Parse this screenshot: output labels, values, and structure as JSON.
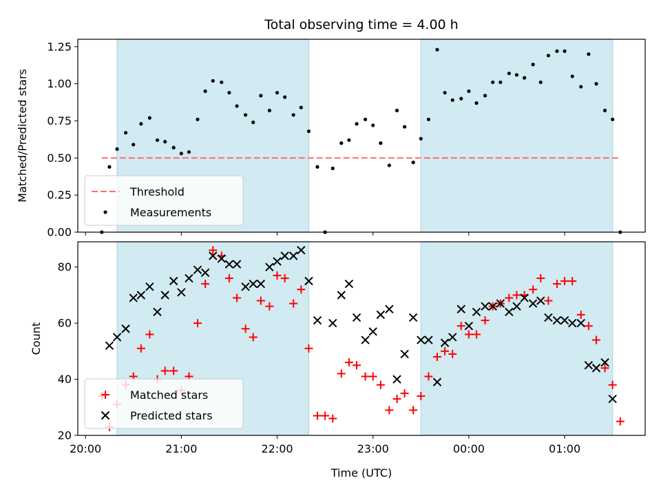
{
  "chart_data": {
    "title": "Total observing time = 4.00 h",
    "xlabel": "Time (UTC)",
    "x_ticks": [
      "20:00",
      "21:00",
      "22:00",
      "23:00",
      "00:00",
      "01:00"
    ],
    "x_unit": "hours since 20:00 UTC",
    "xlim": [
      -0.08,
      5.84
    ],
    "shaded_spans": [
      [
        0.33,
        2.33
      ],
      [
        3.5,
        5.5
      ]
    ],
    "span_color": "#add8e6",
    "panels": [
      {
        "type": "scatter",
        "ylabel": "Matched/Predicted stars",
        "ylim": [
          0.0,
          1.3
        ],
        "y_ticks": [
          "0.00",
          "0.25",
          "0.50",
          "0.75",
          "1.00",
          "1.25"
        ],
        "legend_position": "lower-left",
        "threshold": {
          "name": "Threshold",
          "value": 0.5,
          "x_range": [
            0.17,
            5.58
          ],
          "color": "#ff6a6a"
        },
        "series": [
          {
            "name": "Measurements",
            "color": "#000000",
            "marker": "dot",
            "x": [
              0.17,
              0.25,
              0.33,
              0.42,
              0.5,
              0.58,
              0.67,
              0.75,
              0.83,
              0.92,
              1.0,
              1.08,
              1.17,
              1.25,
              1.33,
              1.42,
              1.5,
              1.58,
              1.67,
              1.75,
              1.83,
              1.92,
              2.0,
              2.08,
              2.17,
              2.25,
              2.33,
              2.42,
              2.5,
              2.58,
              2.67,
              2.75,
              2.83,
              2.92,
              3.0,
              3.08,
              3.17,
              3.25,
              3.33,
              3.42,
              3.5,
              3.58,
              3.67,
              3.75,
              3.83,
              3.92,
              4.0,
              4.08,
              4.17,
              4.25,
              4.33,
              4.42,
              4.5,
              4.58,
              4.67,
              4.75,
              4.83,
              4.92,
              5.0,
              5.08,
              5.17,
              5.25,
              5.33,
              5.42,
              5.5,
              5.58
            ],
            "y": [
              0.0,
              0.44,
              0.56,
              0.67,
              0.59,
              0.73,
              0.77,
              0.62,
              0.61,
              0.57,
              0.53,
              0.54,
              0.76,
              0.95,
              1.02,
              1.01,
              0.94,
              0.85,
              0.79,
              0.74,
              0.92,
              0.82,
              0.94,
              0.91,
              0.79,
              0.84,
              0.68,
              0.44,
              0.0,
              0.43,
              0.6,
              0.62,
              0.73,
              0.76,
              0.72,
              0.6,
              0.45,
              0.82,
              0.71,
              0.47,
              0.63,
              0.76,
              1.23,
              0.94,
              0.89,
              0.9,
              0.95,
              0.87,
              0.92,
              1.01,
              1.01,
              1.07,
              1.06,
              1.04,
              1.13,
              1.01,
              1.19,
              1.22,
              1.22,
              1.05,
              0.98,
              1.2,
              1.0,
              0.82,
              0.76,
              0.0
            ]
          }
        ]
      },
      {
        "type": "scatter",
        "ylabel": "Count",
        "ylim": [
          20,
          89
        ],
        "y_ticks": [
          "20",
          "40",
          "60",
          "80"
        ],
        "legend_position": "lower-left",
        "series": [
          {
            "name": "Matched stars",
            "color": "#ff0000",
            "marker": "plus",
            "x": [
              0.17,
              0.25,
              0.33,
              0.42,
              0.5,
              0.58,
              0.67,
              0.75,
              0.83,
              0.92,
              1.0,
              1.08,
              1.17,
              1.25,
              1.33,
              1.42,
              1.5,
              1.58,
              1.67,
              1.75,
              1.83,
              1.92,
              2.0,
              2.08,
              2.17,
              2.25,
              2.33,
              2.42,
              2.5,
              2.58,
              2.67,
              2.75,
              2.83,
              2.92,
              3.0,
              3.08,
              3.17,
              3.25,
              3.33,
              3.42,
              3.5,
              3.58,
              3.67,
              3.75,
              3.83,
              3.92,
              4.0,
              4.08,
              4.17,
              4.25,
              4.33,
              4.42,
              4.5,
              4.58,
              4.67,
              4.75,
              4.83,
              4.92,
              5.0,
              5.08,
              5.17,
              5.25,
              5.33,
              5.42,
              5.5,
              5.58
            ],
            "y": [
              34,
              23,
              31,
              38,
              41,
              51,
              56,
              40,
              43,
              43,
              36,
              41,
              60,
              74,
              86,
              84,
              76,
              69,
              58,
              55,
              68,
              66,
              77,
              76,
              67,
              72,
              51,
              27,
              27,
              26,
              42,
              46,
              45,
              41,
              41,
              38,
              29,
              33,
              35,
              29,
              34,
              41,
              48,
              50,
              49,
              59,
              56,
              56,
              61,
              66,
              67,
              69,
              70,
              70,
              72,
              76,
              68,
              74,
              75,
              75,
              63,
              59,
              54,
              44,
              38,
              25
            ]
          },
          {
            "name": "Predicted stars",
            "color": "#000000",
            "marker": "x",
            "x": [
              0.25,
              0.33,
              0.42,
              0.5,
              0.58,
              0.67,
              0.75,
              0.83,
              0.92,
              1.0,
              1.08,
              1.17,
              1.25,
              1.33,
              1.42,
              1.5,
              1.58,
              1.67,
              1.75,
              1.83,
              1.92,
              2.0,
              2.08,
              2.17,
              2.25,
              2.33,
              2.42,
              2.58,
              2.67,
              2.75,
              2.83,
              2.92,
              3.0,
              3.08,
              3.17,
              3.25,
              3.33,
              3.42,
              3.5,
              3.58,
              3.67,
              3.75,
              3.83,
              3.92,
              4.0,
              4.08,
              4.17,
              4.25,
              4.33,
              4.42,
              4.5,
              4.58,
              4.67,
              4.75,
              4.83,
              4.92,
              5.0,
              5.08,
              5.17,
              5.25,
              5.33,
              5.42,
              5.5
            ],
            "y": [
              52,
              55,
              58,
              69,
              70,
              73,
              64,
              70,
              75,
              71,
              76,
              79,
              78,
              84,
              83,
              81,
              81,
              73,
              74,
              74,
              80,
              82,
              84,
              84,
              86,
              75,
              61,
              60,
              70,
              74,
              62,
              54,
              57,
              63,
              65,
              40,
              49,
              62,
              54,
              54,
              39,
              53,
              55,
              65,
              59,
              64,
              66,
              66,
              67,
              64,
              66,
              69,
              67,
              68,
              62,
              61,
              61,
              60,
              60,
              45,
              44,
              46,
              33
            ]
          }
        ]
      }
    ]
  }
}
